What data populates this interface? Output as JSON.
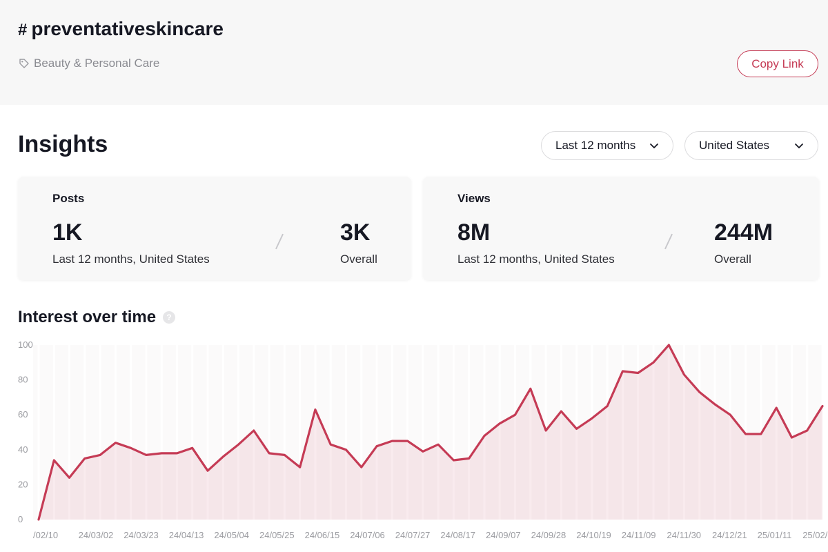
{
  "header": {
    "hash_symbol": "#",
    "hashtag": "preventativeskincare",
    "category": "Beauty & Personal Care",
    "category_icon": "tag-icon",
    "copy_link_label": "Copy Link",
    "accent_color": "#c53b55"
  },
  "insights": {
    "title": "Insights",
    "period_filter": "Last 12 months",
    "region_filter": "United States"
  },
  "posts_card": {
    "title": "Posts",
    "recent_value": "1K",
    "recent_label": "Last 12 months, United States",
    "overall_value": "3K",
    "overall_label": "Overall"
  },
  "views_card": {
    "title": "Views",
    "recent_value": "8M",
    "recent_label": "Last 12 months, United States",
    "overall_value": "244M",
    "overall_label": "Overall"
  },
  "interest": {
    "title": "Interest over time",
    "help_icon": "help-icon"
  },
  "chart_data": {
    "type": "area",
    "ylim": [
      0,
      100
    ],
    "yticks": [
      0,
      20,
      40,
      60,
      80,
      100
    ],
    "xticks": [
      "/02/10",
      "24/03/02",
      "24/03/23",
      "24/04/13",
      "24/05/04",
      "24/05/25",
      "24/06/15",
      "24/07/06",
      "24/07/27",
      "24/08/17",
      "24/09/07",
      "24/09/28",
      "24/10/19",
      "24/11/09",
      "24/11/30",
      "24/12/21",
      "25/01/11",
      "25/02/"
    ],
    "series": [
      {
        "values": [
          0,
          34,
          24,
          35,
          37,
          44,
          41,
          37,
          38,
          38,
          41,
          28,
          36,
          43,
          51,
          38,
          37,
          30,
          63,
          43,
          40,
          30,
          42,
          45,
          45,
          39,
          43,
          34,
          35,
          48,
          55,
          60,
          75,
          51,
          62,
          52,
          58,
          65,
          85,
          84,
          90,
          100,
          83,
          73,
          66,
          60,
          49,
          49,
          64,
          47,
          51,
          65
        ],
        "color": "#c53b55"
      }
    ]
  }
}
